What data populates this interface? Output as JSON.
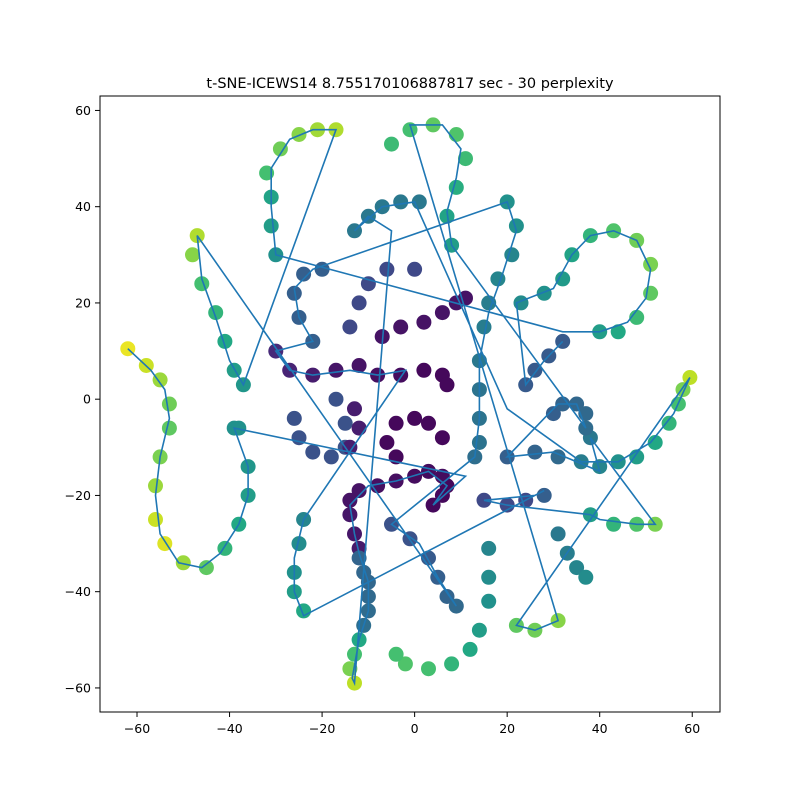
{
  "chart_data": {
    "type": "scatter",
    "title": "t-SNE-ICEWS14 8.755170106887817 sec  - 30 perplexity",
    "xlabel": "",
    "ylabel": "",
    "xlim": [
      -68,
      66
    ],
    "ylim": [
      -65,
      63
    ],
    "xticks": [
      -60,
      -40,
      -20,
      0,
      20,
      40,
      60
    ],
    "yticks": [
      -60,
      -40,
      -20,
      0,
      20,
      40,
      60
    ],
    "xtick_labels": [
      "−60",
      "−40",
      "−20",
      "0",
      "20",
      "40",
      "60"
    ],
    "ytick_labels": [
      "−60",
      "−40",
      "−20",
      "0",
      "20",
      "40",
      "60"
    ],
    "grid": false,
    "line_color": "#1f77b4",
    "colormap": "viridis",
    "points": [
      {
        "x": 4,
        "y": -22,
        "c": 0.02
      },
      {
        "x": 6,
        "y": -20,
        "c": 0.02
      },
      {
        "x": 7,
        "y": -18,
        "c": 0.02
      },
      {
        "x": 6,
        "y": -16,
        "c": 0.03
      },
      {
        "x": 3,
        "y": -15,
        "c": 0.03
      },
      {
        "x": 0,
        "y": -16,
        "c": 0.03
      },
      {
        "x": -4,
        "y": -17,
        "c": 0.04
      },
      {
        "x": -8,
        "y": -18,
        "c": 0.04
      },
      {
        "x": -12,
        "y": -19,
        "c": 0.05
      },
      {
        "x": -14,
        "y": -21,
        "c": 0.05
      },
      {
        "x": -14,
        "y": -24,
        "c": 0.06
      },
      {
        "x": -13,
        "y": -28,
        "c": 0.06
      },
      {
        "x": -12,
        "y": -31,
        "c": 0.07
      },
      {
        "x": -12,
        "y": -33,
        "c": 0.32
      },
      {
        "x": -11,
        "y": -36,
        "c": 0.33
      },
      {
        "x": -10,
        "y": -38,
        "c": 0.33
      },
      {
        "x": -10,
        "y": -41,
        "c": 0.34
      },
      {
        "x": -10,
        "y": -44,
        "c": 0.35
      },
      {
        "x": -11,
        "y": -47,
        "c": 0.36
      },
      {
        "x": -12,
        "y": -50,
        "c": 0.6
      },
      {
        "x": -13,
        "y": -53,
        "c": 0.7
      },
      {
        "x": -14,
        "y": -56,
        "c": 0.8
      },
      {
        "x": -13,
        "y": -59,
        "c": 0.9
      },
      {
        "x": 38,
        "y": -8,
        "c": 0.4
      },
      {
        "x": 36,
        "y": -13,
        "c": 0.42
      },
      {
        "x": 40,
        "y": -14,
        "c": 0.45
      },
      {
        "x": 44,
        "y": -13,
        "c": 0.5
      },
      {
        "x": 48,
        "y": -12,
        "c": 0.55
      },
      {
        "x": 52,
        "y": -9,
        "c": 0.6
      },
      {
        "x": 55,
        "y": -5,
        "c": 0.65
      },
      {
        "x": 57,
        "y": -1,
        "c": 0.7
      },
      {
        "x": 58,
        "y": 2,
        "c": 0.8
      },
      {
        "x": 59.5,
        "y": 4.5,
        "c": 0.9
      },
      {
        "x": 22,
        "y": -47,
        "c": 0.75
      },
      {
        "x": 26,
        "y": -48,
        "c": 0.78
      },
      {
        "x": 31,
        "y": -46,
        "c": 0.82
      },
      {
        "x": 30,
        "y": -3,
        "c": 0.3
      },
      {
        "x": 32,
        "y": -1,
        "c": 0.32
      },
      {
        "x": 35,
        "y": -1,
        "c": 0.33
      },
      {
        "x": 37,
        "y": -3,
        "c": 0.34
      },
      {
        "x": 37,
        "y": -6,
        "c": 0.35
      },
      {
        "x": -62,
        "y": 10.5,
        "c": 0.97
      },
      {
        "x": -58,
        "y": 7,
        "c": 0.92
      },
      {
        "x": -55,
        "y": 4,
        "c": 0.85
      },
      {
        "x": -53,
        "y": -1,
        "c": 0.78
      },
      {
        "x": -53,
        "y": -6,
        "c": 0.75
      },
      {
        "x": -55,
        "y": -12,
        "c": 0.8
      },
      {
        "x": -56,
        "y": -18,
        "c": 0.85
      },
      {
        "x": -56,
        "y": -25,
        "c": 0.92
      },
      {
        "x": -54,
        "y": -30,
        "c": 0.95
      },
      {
        "x": -50,
        "y": -34,
        "c": 0.85
      },
      {
        "x": -45,
        "y": -35,
        "c": 0.75
      },
      {
        "x": -41,
        "y": -31,
        "c": 0.65
      },
      {
        "x": -38,
        "y": -26,
        "c": 0.6
      },
      {
        "x": -36,
        "y": -20,
        "c": 0.55
      },
      {
        "x": -36,
        "y": -14,
        "c": 0.52
      },
      {
        "x": -39,
        "y": -6,
        "c": 0.5
      },
      {
        "x": 0,
        "y": 27,
        "c": 0.22
      },
      {
        "x": -6,
        "y": 27,
        "c": 0.22
      },
      {
        "x": -10,
        "y": 24,
        "c": 0.22
      },
      {
        "x": -12,
        "y": 20,
        "c": 0.22
      },
      {
        "x": -14,
        "y": 15,
        "c": 0.22
      },
      {
        "x": -20,
        "y": 27,
        "c": 0.3
      },
      {
        "x": -24,
        "y": 26,
        "c": 0.3
      },
      {
        "x": -26,
        "y": 22,
        "c": 0.3
      },
      {
        "x": -25,
        "y": 17,
        "c": 0.3
      },
      {
        "x": -22,
        "y": 12,
        "c": 0.3
      },
      {
        "x": -26,
        "y": -4,
        "c": 0.25
      },
      {
        "x": -25,
        "y": -8,
        "c": 0.25
      },
      {
        "x": -22,
        "y": -11,
        "c": 0.25
      },
      {
        "x": -18,
        "y": -12,
        "c": 0.25
      },
      {
        "x": -15,
        "y": -10,
        "c": 0.25
      },
      {
        "x": -15,
        "y": -5,
        "c": 0.25
      },
      {
        "x": -17,
        "y": 0,
        "c": 0.25
      },
      {
        "x": 1,
        "y": 41,
        "c": 0.4
      },
      {
        "x": -3,
        "y": 41,
        "c": 0.4
      },
      {
        "x": -7,
        "y": 40,
        "c": 0.4
      },
      {
        "x": -10,
        "y": 38,
        "c": 0.4
      },
      {
        "x": -13,
        "y": 35,
        "c": 0.4
      },
      {
        "x": -38,
        "y": -6,
        "c": 0.5
      },
      {
        "x": 20,
        "y": 41,
        "c": 0.5
      },
      {
        "x": 22,
        "y": 36,
        "c": 0.5
      },
      {
        "x": 21,
        "y": 30,
        "c": 0.45
      },
      {
        "x": 18,
        "y": 25,
        "c": 0.45
      },
      {
        "x": 16,
        "y": 20,
        "c": 0.42
      },
      {
        "x": 15,
        "y": 15,
        "c": 0.42
      },
      {
        "x": 14,
        "y": 8,
        "c": 0.4
      },
      {
        "x": 14,
        "y": 2,
        "c": 0.38
      },
      {
        "x": 14,
        "y": -4,
        "c": 0.38
      },
      {
        "x": 14,
        "y": -9,
        "c": 0.38
      },
      {
        "x": 13,
        "y": -12,
        "c": 0.36
      },
      {
        "x": 8,
        "y": 32,
        "c": 0.55
      },
      {
        "x": 7,
        "y": 38,
        "c": 0.58
      },
      {
        "x": 9,
        "y": 44,
        "c": 0.62
      },
      {
        "x": 11,
        "y": 50,
        "c": 0.68
      },
      {
        "x": 9,
        "y": 55,
        "c": 0.72
      },
      {
        "x": 4,
        "y": 57,
        "c": 0.75
      },
      {
        "x": -1,
        "y": 56,
        "c": 0.7
      },
      {
        "x": -5,
        "y": 53,
        "c": 0.68
      },
      {
        "x": -30,
        "y": 30,
        "c": 0.5
      },
      {
        "x": -31,
        "y": 36,
        "c": 0.55
      },
      {
        "x": -31,
        "y": 42,
        "c": 0.58
      },
      {
        "x": -32,
        "y": 47,
        "c": 0.7
      },
      {
        "x": -29,
        "y": 52,
        "c": 0.78
      },
      {
        "x": -25,
        "y": 55,
        "c": 0.82
      },
      {
        "x": -21,
        "y": 56,
        "c": 0.86
      },
      {
        "x": -17,
        "y": 56,
        "c": 0.88
      },
      {
        "x": -47,
        "y": 34,
        "c": 0.88
      },
      {
        "x": -48,
        "y": 30,
        "c": 0.82
      },
      {
        "x": -46,
        "y": 24,
        "c": 0.7
      },
      {
        "x": -43,
        "y": 18,
        "c": 0.65
      },
      {
        "x": -41,
        "y": 12,
        "c": 0.6
      },
      {
        "x": -39,
        "y": 6,
        "c": 0.55
      },
      {
        "x": -37,
        "y": 3,
        "c": 0.52
      },
      {
        "x": 40,
        "y": 14,
        "c": 0.55
      },
      {
        "x": 44,
        "y": 14,
        "c": 0.6
      },
      {
        "x": 48,
        "y": 17,
        "c": 0.68
      },
      {
        "x": 51,
        "y": 22,
        "c": 0.75
      },
      {
        "x": 51,
        "y": 28,
        "c": 0.8
      },
      {
        "x": 48,
        "y": 33,
        "c": 0.78
      },
      {
        "x": 43,
        "y": 35,
        "c": 0.72
      },
      {
        "x": 38,
        "y": 34,
        "c": 0.65
      },
      {
        "x": 34,
        "y": 30,
        "c": 0.58
      },
      {
        "x": 32,
        "y": 25,
        "c": 0.54
      },
      {
        "x": 28,
        "y": 22,
        "c": 0.5
      },
      {
        "x": 23,
        "y": 20,
        "c": 0.48
      },
      {
        "x": 32,
        "y": 12,
        "c": 0.28
      },
      {
        "x": 29,
        "y": 9,
        "c": 0.28
      },
      {
        "x": 26,
        "y": 6,
        "c": 0.28
      },
      {
        "x": 24,
        "y": 3,
        "c": 0.28
      },
      {
        "x": 20,
        "y": -12,
        "c": 0.3
      },
      {
        "x": 26,
        "y": -11,
        "c": 0.32
      },
      {
        "x": 31,
        "y": -12,
        "c": 0.34
      },
      {
        "x": 24,
        "y": -21,
        "c": 0.22
      },
      {
        "x": 20,
        "y": -22,
        "c": 0.22
      },
      {
        "x": 15,
        "y": -21,
        "c": 0.22
      },
      {
        "x": 28,
        "y": -20,
        "c": 0.3
      },
      {
        "x": -30,
        "y": 10,
        "c": 0.12
      },
      {
        "x": -27,
        "y": 6,
        "c": 0.1
      },
      {
        "x": -22,
        "y": 5,
        "c": 0.08
      },
      {
        "x": -17,
        "y": 6,
        "c": 0.06
      },
      {
        "x": -12,
        "y": 7,
        "c": 0.05
      },
      {
        "x": -8,
        "y": 5,
        "c": 0.04
      },
      {
        "x": -3,
        "y": 5,
        "c": 0.03
      },
      {
        "x": 2,
        "y": 6,
        "c": 0.02
      },
      {
        "x": 6,
        "y": 5,
        "c": 0.02
      },
      {
        "x": 7,
        "y": 3,
        "c": 0.02
      },
      {
        "x": -7,
        "y": 13,
        "c": 0.05
      },
      {
        "x": -3,
        "y": 15,
        "c": 0.05
      },
      {
        "x": 2,
        "y": 16,
        "c": 0.05
      },
      {
        "x": 6,
        "y": 18,
        "c": 0.05
      },
      {
        "x": 9,
        "y": 20,
        "c": 0.05
      },
      {
        "x": 11,
        "y": 21,
        "c": 0.05
      },
      {
        "x": 6,
        "y": -8,
        "c": 0.02
      },
      {
        "x": 3,
        "y": -5,
        "c": 0.02
      },
      {
        "x": 0,
        "y": -4,
        "c": 0.02
      },
      {
        "x": -4,
        "y": -5,
        "c": 0.02
      },
      {
        "x": -6,
        "y": -9,
        "c": 0.02
      },
      {
        "x": -4,
        "y": -12,
        "c": 0.02
      },
      {
        "x": -13,
        "y": -2,
        "c": 0.08
      },
      {
        "x": -12,
        "y": -6,
        "c": 0.08
      },
      {
        "x": -14,
        "y": -10,
        "c": 0.08
      },
      {
        "x": -5,
        "y": -26,
        "c": 0.25
      },
      {
        "x": -1,
        "y": -29,
        "c": 0.25
      },
      {
        "x": 3,
        "y": -33,
        "c": 0.28
      },
      {
        "x": 5,
        "y": -37,
        "c": 0.3
      },
      {
        "x": 7,
        "y": -41,
        "c": 0.32
      },
      {
        "x": 9,
        "y": -43,
        "c": 0.34
      },
      {
        "x": 16,
        "y": -31,
        "c": 0.45
      },
      {
        "x": 16,
        "y": -37,
        "c": 0.48
      },
      {
        "x": 16,
        "y": -42,
        "c": 0.5
      },
      {
        "x": 14,
        "y": -48,
        "c": 0.55
      },
      {
        "x": 12,
        "y": -52,
        "c": 0.6
      },
      {
        "x": 8,
        "y": -55,
        "c": 0.65
      },
      {
        "x": 3,
        "y": -56,
        "c": 0.7
      },
      {
        "x": -2,
        "y": -55,
        "c": 0.72
      },
      {
        "x": -4,
        "y": -53,
        "c": 0.7
      },
      {
        "x": -24,
        "y": -25,
        "c": 0.45
      },
      {
        "x": -25,
        "y": -30,
        "c": 0.48
      },
      {
        "x": -26,
        "y": -36,
        "c": 0.5
      },
      {
        "x": -26,
        "y": -40,
        "c": 0.55
      },
      {
        "x": -24,
        "y": -44,
        "c": 0.6
      },
      {
        "x": 31,
        "y": -28,
        "c": 0.4
      },
      {
        "x": 33,
        "y": -32,
        "c": 0.42
      },
      {
        "x": 35,
        "y": -35,
        "c": 0.45
      },
      {
        "x": 37,
        "y": -37,
        "c": 0.48
      },
      {
        "x": 38,
        "y": -24,
        "c": 0.55
      },
      {
        "x": 43,
        "y": -26,
        "c": 0.65
      },
      {
        "x": 48,
        "y": -26,
        "c": 0.72
      },
      {
        "x": 52,
        "y": -26,
        "c": 0.8
      }
    ],
    "line_path": [
      [
        -62,
        10.5
      ],
      [
        -57,
        6
      ],
      [
        -54,
        2
      ],
      [
        -53,
        -4
      ],
      [
        -55,
        -12
      ],
      [
        -56,
        -20
      ],
      [
        -55,
        -28
      ],
      [
        -51,
        -34
      ],
      [
        -46,
        -35
      ],
      [
        -42,
        -32
      ],
      [
        -38,
        -26
      ],
      [
        -36,
        -20
      ],
      [
        -36,
        -14
      ],
      [
        -39,
        -6
      ],
      [
        11,
        -16
      ],
      [
        4,
        -22
      ],
      [
        7,
        -18
      ],
      [
        3,
        -15
      ],
      [
        -4,
        -17
      ],
      [
        -10,
        -18
      ],
      [
        -14,
        -22
      ],
      [
        -13,
        -28
      ],
      [
        -12,
        -32
      ],
      [
        -10,
        -38
      ],
      [
        -10,
        -44
      ],
      [
        -12,
        -50
      ],
      [
        -13.5,
        -58
      ],
      [
        -13,
        -59
      ],
      [
        -5,
        35
      ],
      [
        -10,
        38
      ],
      [
        -13,
        35
      ],
      [
        -7,
        40
      ],
      [
        0,
        41
      ],
      [
        20,
        -2
      ],
      [
        36,
        -13
      ],
      [
        44,
        -13
      ],
      [
        51,
        -9
      ],
      [
        56,
        -3
      ],
      [
        59.5,
        4.5
      ],
      [
        22,
        -47
      ],
      [
        26,
        -48
      ],
      [
        31,
        -46
      ],
      [
        -1,
        57
      ],
      [
        6,
        57
      ],
      [
        10,
        52
      ],
      [
        9,
        46
      ],
      [
        7,
        39
      ],
      [
        8,
        32
      ],
      [
        37,
        -6
      ],
      [
        35,
        -1
      ],
      [
        31,
        -1
      ],
      [
        29,
        -3
      ],
      [
        20,
        -12
      ],
      [
        30,
        -11
      ],
      [
        40,
        -15
      ],
      [
        38,
        -8
      ],
      [
        52,
        -26
      ],
      [
        48,
        -26
      ],
      [
        40,
        -25
      ],
      [
        38,
        -24
      ],
      [
        20,
        -22
      ],
      [
        15,
        -21
      ],
      [
        26,
        -20
      ],
      [
        28,
        -19
      ],
      [
        -24,
        -45
      ],
      [
        -26,
        -40
      ],
      [
        -26,
        -33
      ],
      [
        -24,
        -25
      ],
      [
        -2,
        6
      ],
      [
        -8,
        5
      ],
      [
        -14,
        6
      ],
      [
        -22,
        5
      ],
      [
        -27,
        6
      ],
      [
        -30,
        10
      ],
      [
        -22,
        12
      ],
      [
        -25,
        17
      ],
      [
        -26,
        23
      ],
      [
        -22,
        27
      ],
      [
        20,
        41
      ],
      [
        22,
        35
      ],
      [
        19,
        26
      ],
      [
        16,
        18
      ],
      [
        14,
        8
      ],
      [
        14,
        -4
      ],
      [
        13,
        -12
      ],
      [
        -5,
        -26
      ],
      [
        1,
        -30
      ],
      [
        5,
        -37
      ],
      [
        9,
        -43
      ],
      [
        -47,
        34
      ],
      [
        -46,
        25
      ],
      [
        -43,
        17
      ],
      [
        -40,
        8
      ],
      [
        -37,
        3
      ],
      [
        -17,
        56
      ],
      [
        -22,
        56
      ],
      [
        -27,
        54
      ],
      [
        -31,
        48
      ],
      [
        -31,
        40
      ],
      [
        -30,
        30
      ],
      [
        32,
        14
      ],
      [
        40,
        14
      ],
      [
        46,
        16
      ],
      [
        50,
        21
      ],
      [
        51,
        27
      ],
      [
        48,
        33
      ],
      [
        43,
        35
      ],
      [
        38,
        34
      ],
      [
        34,
        30
      ],
      [
        30,
        23
      ],
      [
        22,
        20
      ],
      [
        24,
        3
      ],
      [
        28,
        8
      ],
      [
        32,
        12
      ]
    ]
  }
}
